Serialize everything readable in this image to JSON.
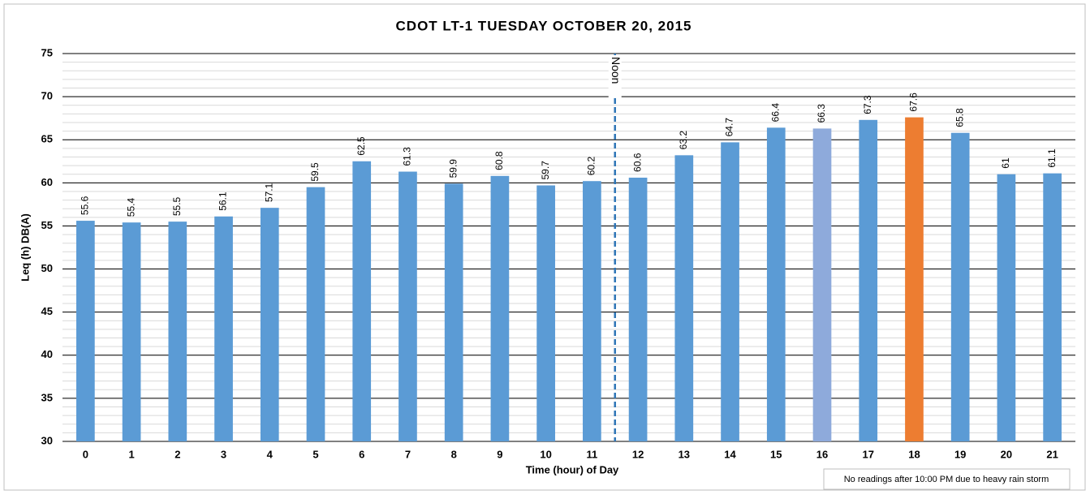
{
  "chart_data": {
    "type": "bar",
    "title": "CDOT LT-1 TUESDAY OCTOBER 20, 2015",
    "x_label": "Time (hour) of Day",
    "y_label": "Leq (h) DB(A)",
    "categories": [
      "0",
      "1",
      "2",
      "3",
      "4",
      "5",
      "6",
      "7",
      "8",
      "9",
      "10",
      "11",
      "12",
      "13",
      "14",
      "15",
      "16",
      "17",
      "18",
      "19",
      "20",
      "21"
    ],
    "values": [
      55.6,
      55.4,
      55.5,
      56.1,
      57.1,
      59.5,
      62.5,
      61.3,
      59.9,
      60.8,
      59.7,
      60.2,
      60.6,
      63.2,
      64.7,
      66.4,
      66.3,
      67.3,
      67.6,
      65.8,
      61,
      61.1
    ],
    "colors": [
      "#5b9bd5",
      "#5b9bd5",
      "#5b9bd5",
      "#5b9bd5",
      "#5b9bd5",
      "#5b9bd5",
      "#5b9bd5",
      "#5b9bd5",
      "#5b9bd5",
      "#5b9bd5",
      "#5b9bd5",
      "#5b9bd5",
      "#5b9bd5",
      "#5b9bd5",
      "#5b9bd5",
      "#5b9bd5",
      "#8eaadb",
      "#5b9bd5",
      "#ed7d31",
      "#5b9bd5",
      "#5b9bd5",
      "#5b9bd5"
    ],
    "ylim": [
      30,
      75
    ],
    "yticks": [
      30,
      35,
      40,
      45,
      50,
      55,
      60,
      65,
      70,
      75
    ],
    "grid": true,
    "minor_grid_step": 1,
    "annotations": [
      {
        "text": "Noon",
        "x": 11.5
      }
    ],
    "note": "No readings after 10:00 PM due to heavy rain storm"
  }
}
